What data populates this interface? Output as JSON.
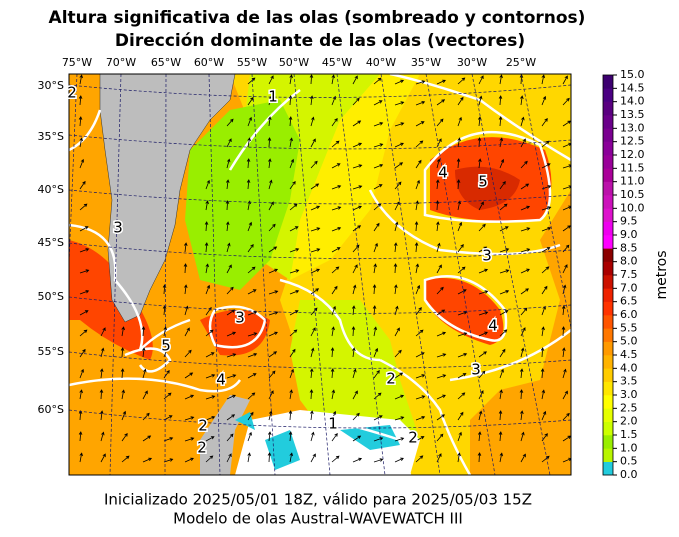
{
  "header": {
    "title_line1": "Altura significativa de las olas (sombreado y contornos)",
    "title_line2": "Dirección dominante de las olas (vectores)"
  },
  "map": {
    "lon_labels": [
      "75°W",
      "70°W",
      "65°W",
      "60°W",
      "55°W",
      "50°W",
      "45°W",
      "40°W",
      "35°W",
      "30°W",
      "25°W"
    ],
    "lat_labels": [
      "30°S",
      "35°S",
      "40°S",
      "45°S",
      "50°S",
      "55°S",
      "60°S"
    ],
    "contour_labels": [
      "2",
      "1",
      "4",
      "5",
      "3",
      "4",
      "3",
      "4",
      "5",
      "3",
      "2",
      "2",
      "1",
      "2",
      "3",
      "2"
    ]
  },
  "colorbar": {
    "label": "metros",
    "ticks": [
      "0.0",
      "0.5",
      "1.0",
      "1.5",
      "2.0",
      "2.5",
      "3.0",
      "3.5",
      "4.0",
      "4.5",
      "5.0",
      "5.5",
      "6.0",
      "6.5",
      "7.0",
      "7.5",
      "8.0",
      "8.5",
      "9.0",
      "9.5",
      "10.0",
      "10.5",
      "11.0",
      "11.5",
      "12.0",
      "12.5",
      "13.0",
      "13.5",
      "14.0",
      "14.5",
      "15.0"
    ]
  },
  "footer": {
    "line1": "Inicializado 2025/05/01 18Z, válido para 2025/05/03 15Z",
    "line2": "Modelo de olas Austral-WAVEWATCH III"
  }
}
